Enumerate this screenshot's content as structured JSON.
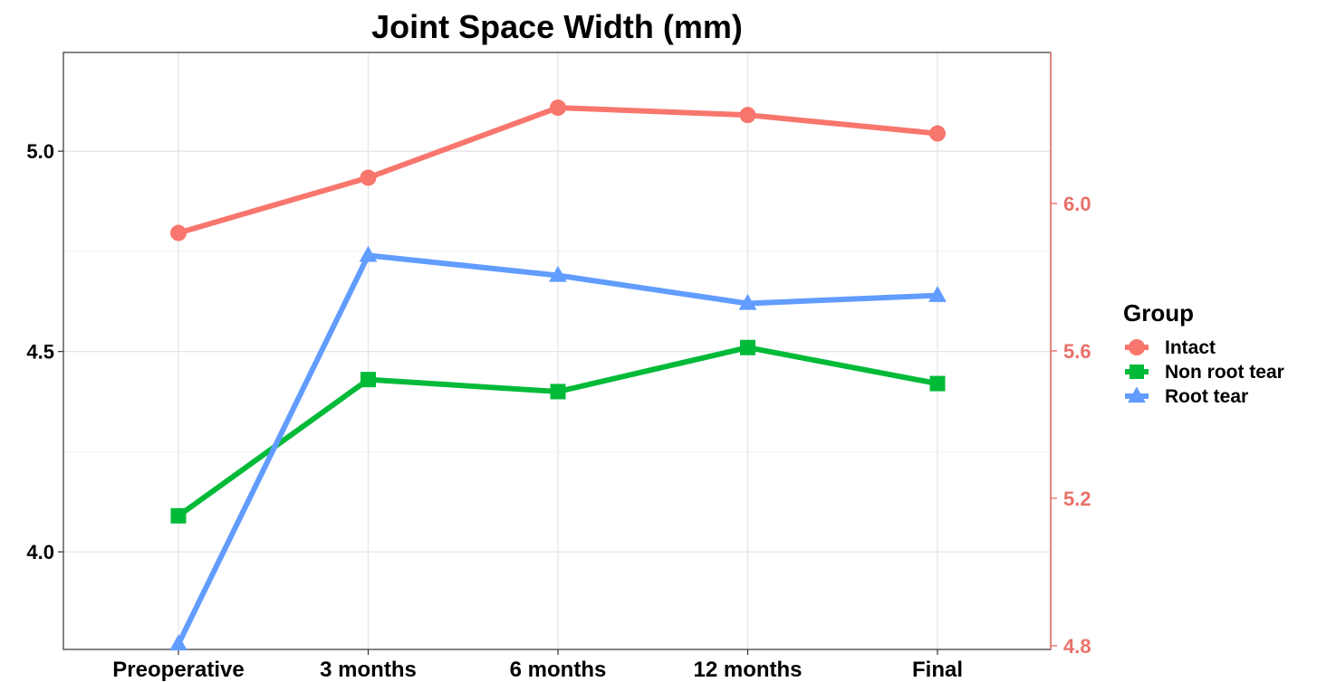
{
  "chart_data": {
    "type": "line",
    "title": "Joint Space Width (mm)",
    "xlabel": "",
    "ylabel": "",
    "categories": [
      "Preoperative",
      "3 months",
      "6 months",
      "12 months",
      "Final"
    ],
    "y_left": {
      "ylim": [
        3.77,
        5.26
      ],
      "ticks": [
        4.0,
        4.5,
        5.0
      ],
      "tick_labels": [
        "4.0",
        "4.5",
        "5.0"
      ],
      "color": "#000000"
    },
    "y_right": {
      "ylim": [
        4.78,
        6.4
      ],
      "ticks": [
        4.8,
        5.2,
        5.6,
        6.0
      ],
      "tick_labels": [
        "4.8",
        "5.2",
        "5.6",
        "6.0"
      ],
      "color": "#E8716A"
    },
    "grid": true,
    "legend": {
      "title": "Group",
      "placement": "right"
    },
    "series": [
      {
        "name": "Intact",
        "axis": "right",
        "color": "#F8766D",
        "marker": "circle",
        "values": [
          5.92,
          6.07,
          6.26,
          6.24,
          6.19
        ]
      },
      {
        "name": "Non root tear",
        "axis": "left",
        "color": "#00BA38",
        "marker": "square",
        "values": [
          4.09,
          4.43,
          4.4,
          4.51,
          4.42
        ]
      },
      {
        "name": "Root tear",
        "axis": "left",
        "color": "#619CFF",
        "marker": "triangle",
        "values": [
          3.77,
          4.74,
          4.69,
          4.62,
          4.64
        ]
      }
    ]
  }
}
